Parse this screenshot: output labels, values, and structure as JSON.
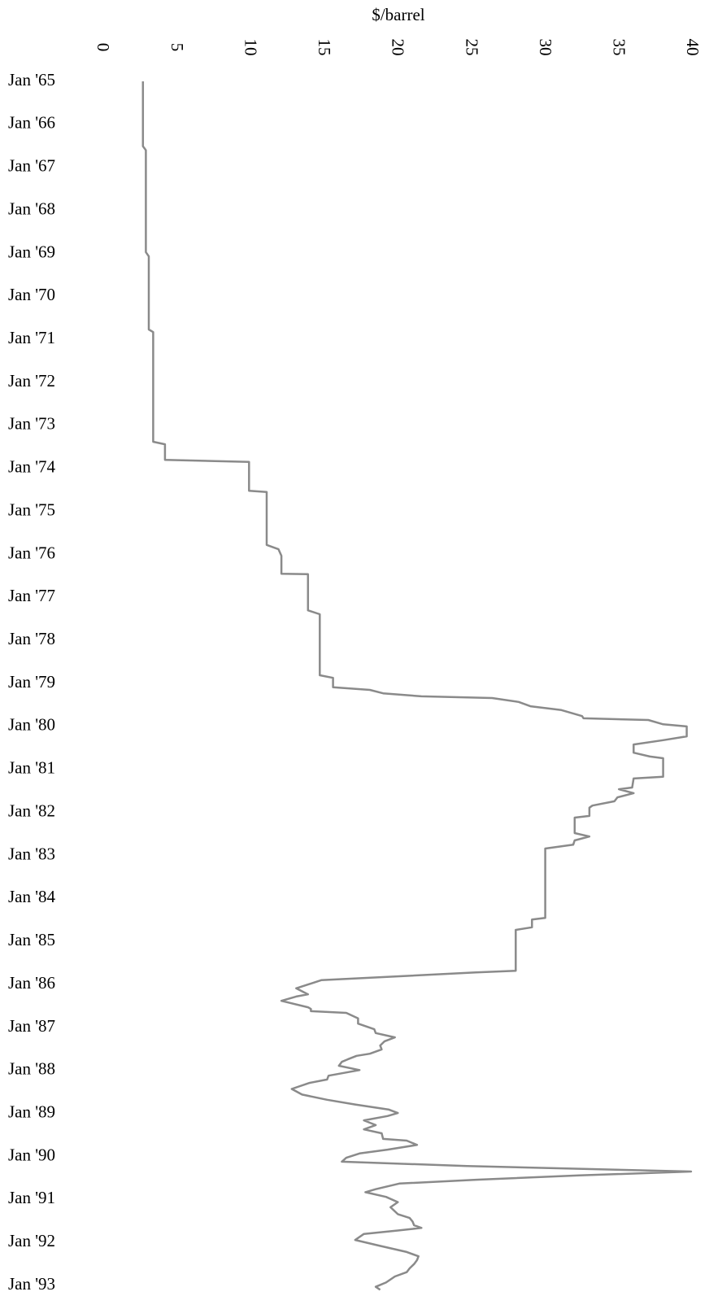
{
  "chart_data": {
    "type": "line",
    "orientation": "vertical-time",
    "ylabel": "$/barrel",
    "color": "#8a8a8a",
    "ylim": [
      0,
      40
    ],
    "yticks": [
      0,
      5,
      10,
      15,
      20,
      25,
      30,
      35,
      40
    ],
    "xlim": [
      1965,
      1993.1
    ],
    "xticks": [
      {
        "value": 1965,
        "label": "Jan '65"
      },
      {
        "value": 1966,
        "label": "Jan '66"
      },
      {
        "value": 1967,
        "label": "Jan '67"
      },
      {
        "value": 1968,
        "label": "Jan '68"
      },
      {
        "value": 1969,
        "label": "Jan '69"
      },
      {
        "value": 1970,
        "label": "Jan '70"
      },
      {
        "value": 1971,
        "label": "Jan '71"
      },
      {
        "value": 1972,
        "label": "Jan '72"
      },
      {
        "value": 1973,
        "label": "Jan '73"
      },
      {
        "value": 1974,
        "label": "Jan '74"
      },
      {
        "value": 1975,
        "label": "Jan '75"
      },
      {
        "value": 1976,
        "label": "Jan '76"
      },
      {
        "value": 1977,
        "label": "Jan '77"
      },
      {
        "value": 1978,
        "label": "Jan '78"
      },
      {
        "value": 1979,
        "label": "Jan '79"
      },
      {
        "value": 1980,
        "label": "Jan '80"
      },
      {
        "value": 1981,
        "label": "Jan '81"
      },
      {
        "value": 1982,
        "label": "Jan '82"
      },
      {
        "value": 1983,
        "label": "Jan '83"
      },
      {
        "value": 1984,
        "label": "Jan '84"
      },
      {
        "value": 1985,
        "label": "Jan '85"
      },
      {
        "value": 1986,
        "label": "Jan '86"
      },
      {
        "value": 1987,
        "label": "Jan '87"
      },
      {
        "value": 1988,
        "label": "Jan '88"
      },
      {
        "value": 1989,
        "label": "Jan '89"
      },
      {
        "value": 1990,
        "label": "Jan '90"
      },
      {
        "value": 1991,
        "label": "Jan '91"
      },
      {
        "value": 1992,
        "label": "Jan '92"
      },
      {
        "value": 1993,
        "label": "Jan '93"
      }
    ],
    "x": [
      1965.0,
      1966.51,
      1966.6,
      1968.97,
      1969.07,
      1970.77,
      1970.83,
      1973.38,
      1973.44,
      1973.8,
      1973.85,
      1974.52,
      1974.55,
      1975.78,
      1975.88,
      1976.03,
      1976.45,
      1976.46,
      1977.3,
      1977.39,
      1978.81,
      1978.87,
      1979.09,
      1979.15,
      1979.23,
      1979.3,
      1979.34,
      1979.43,
      1979.53,
      1979.62,
      1979.76,
      1979.81,
      1979.85,
      1979.95,
      1980.0,
      1980.23,
      1980.32,
      1980.42,
      1980.61,
      1980.7,
      1980.74,
      1981.17,
      1981.21,
      1981.42,
      1981.46,
      1981.55,
      1981.65,
      1981.74,
      1981.84,
      1981.89,
      1982.08,
      1982.12,
      1982.48,
      1982.56,
      1982.65,
      1982.75,
      1982.84,
      1982.88,
      1984.45,
      1984.49,
      1984.67,
      1984.73,
      1985.68,
      1985.72,
      1985.9,
      1986.09,
      1986.23,
      1986.28,
      1986.38,
      1986.53,
      1986.57,
      1986.62,
      1986.66,
      1986.79,
      1986.91,
      1987.04,
      1987.13,
      1987.23,
      1987.32,
      1987.42,
      1987.51,
      1987.61,
      1987.66,
      1987.74,
      1987.8,
      1987.89,
      1987.99,
      1988.12,
      1988.21,
      1988.29,
      1988.43,
      1988.56,
      1988.68,
      1988.79,
      1988.91,
      1988.99,
      1989.06,
      1989.16,
      1989.27,
      1989.37,
      1989.46,
      1989.59,
      1989.63,
      1989.73,
      1989.84,
      1989.93,
      1990.03,
      1990.12,
      1990.22,
      1990.35,
      1990.44,
      1990.54,
      1990.63,
      1990.76,
      1990.83,
      1990.94,
      1991.06,
      1991.18,
      1991.34,
      1991.43,
      1991.51,
      1991.6,
      1991.66,
      1991.72,
      1991.8,
      1991.94,
      1992.07,
      1992.22,
      1992.32,
      1992.41,
      1992.5,
      1992.6,
      1992.69,
      1992.79,
      1992.93,
      1993.03,
      1993.1
    ],
    "values": [
      2.8,
      2.8,
      3.0,
      3.0,
      3.2,
      3.2,
      3.5,
      3.5,
      4.3,
      4.3,
      10.0,
      10.0,
      11.2,
      11.2,
      12.0,
      12.2,
      12.2,
      14.0,
      14.0,
      14.8,
      14.8,
      15.7,
      15.7,
      18.2,
      19.1,
      21.7,
      26.5,
      28.3,
      29.1,
      31.2,
      32.6,
      32.7,
      37.1,
      38.1,
      39.7,
      39.7,
      38.1,
      36.1,
      36.1,
      37.2,
      38.1,
      38.1,
      36.1,
      36.0,
      35.1,
      36.1,
      35.0,
      34.8,
      33.3,
      33.1,
      33.1,
      32.1,
      32.1,
      33.1,
      32.1,
      32.0,
      30.1,
      30.1,
      30.1,
      29.2,
      29.2,
      28.1,
      28.1,
      25.4,
      14.9,
      13.2,
      14.0,
      13.2,
      12.2,
      14.0,
      14.2,
      14.2,
      16.6,
      17.4,
      17.4,
      18.5,
      18.6,
      19.9,
      19.2,
      18.9,
      19.0,
      18.2,
      17.3,
      16.7,
      16.3,
      16.1,
      17.5,
      15.4,
      15.3,
      14.1,
      12.9,
      13.6,
      15.3,
      17.2,
      19.5,
      20.1,
      19.4,
      17.8,
      18.6,
      17.8,
      19.0,
      19.1,
      20.7,
      21.4,
      19.4,
      17.5,
      16.6,
      16.3,
      24.8,
      40.0,
      32.4,
      25.4,
      20.2,
      18.6,
      17.9,
      19.3,
      20.1,
      19.6,
      20.1,
      20.9,
      21.1,
      21.2,
      21.7,
      20.1,
      17.8,
      17.2,
      18.8,
      20.7,
      21.5,
      21.4,
      21.2,
      20.9,
      20.7,
      19.9,
      19.3,
      18.6,
      18.9
    ]
  }
}
